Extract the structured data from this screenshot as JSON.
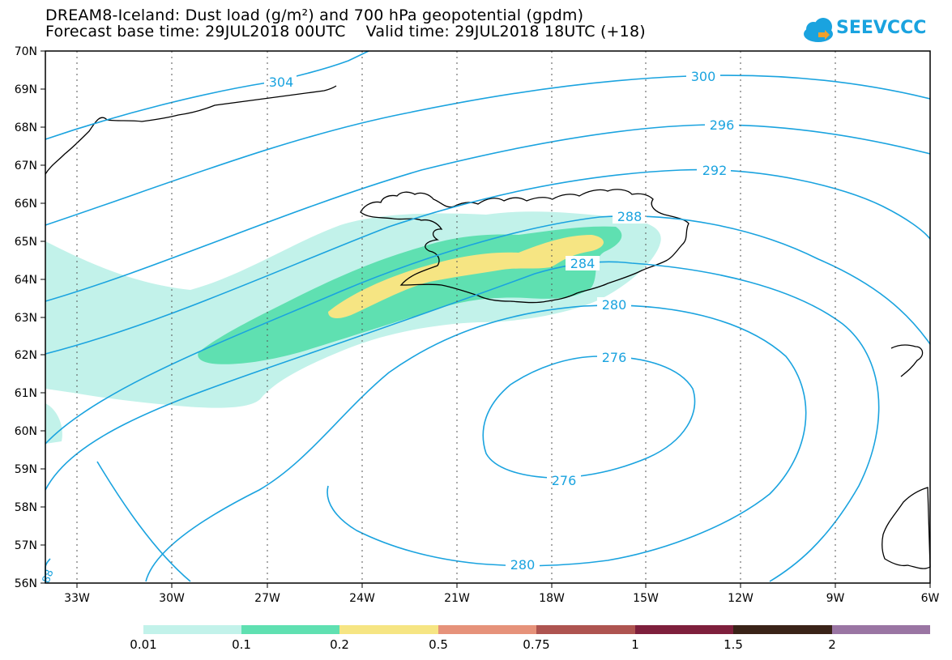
{
  "header": {
    "line1": "DREAM8-Iceland: Dust load (g/m²) and 700 hPa geopotential (gpdm)",
    "line2": "Forecast base time: 29JUL2018 00UTC    Valid time: 29JUL2018 18UTC (+18)"
  },
  "logo": {
    "text": "SEEVCCC"
  },
  "axes": {
    "lat_labels": [
      "70N",
      "69N",
      "68N",
      "67N",
      "66N",
      "65N",
      "64N",
      "63N",
      "62N",
      "61N",
      "60N",
      "59N",
      "58N",
      "57N",
      "56N"
    ],
    "lon_labels": [
      "33W",
      "30W",
      "27W",
      "24W",
      "21W",
      "18W",
      "15W",
      "12W",
      "9W",
      "6W"
    ]
  },
  "contours": {
    "labels": [
      "304",
      "300",
      "296",
      "292",
      "288",
      "284",
      "280",
      "276",
      "276",
      "280",
      "88"
    ]
  },
  "legend": {
    "labels": [
      "0.01",
      "0.1",
      "0.2",
      "0.5",
      "0.75",
      "1",
      "1.5",
      "2"
    ],
    "colors": [
      "#c2f2ea",
      "#5fe0b1",
      "#f6e583",
      "#e6927a",
      "#ae5450",
      "#7e1f3c",
      "#3a2318",
      "#9a75a3"
    ]
  },
  "colors": {
    "contour": "#1aa3df",
    "dust_low": "#c2f2ea",
    "dust_mid": "#5fe0b1",
    "dust_high": "#f6e583"
  }
}
